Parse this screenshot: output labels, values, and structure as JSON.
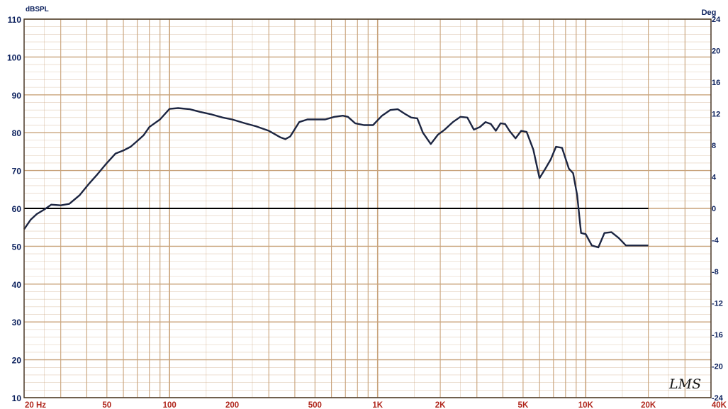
{
  "chart_data": {
    "type": "line",
    "title": "",
    "y_unit_left": "dBSPL",
    "y_unit_right": "Deg",
    "x_scale": "log",
    "xlim": [
      20,
      40000
    ],
    "ylim": [
      10,
      110
    ],
    "ylim_right": [
      -24,
      24
    ],
    "grid": true,
    "x_tick_labels": [
      {
        "value": 20,
        "label": "20  Hz"
      },
      {
        "value": 50,
        "label": "50"
      },
      {
        "value": 100,
        "label": "100"
      },
      {
        "value": 200,
        "label": "200"
      },
      {
        "value": 500,
        "label": "500"
      },
      {
        "value": 1000,
        "label": "1K"
      },
      {
        "value": 2000,
        "label": "2K"
      },
      {
        "value": 5000,
        "label": "5K"
      },
      {
        "value": 10000,
        "label": "10K"
      },
      {
        "value": 20000,
        "label": "20K"
      },
      {
        "value": 40000,
        "label": "40K"
      }
    ],
    "y_ticks_left": [
      10,
      20,
      30,
      40,
      50,
      60,
      70,
      80,
      90,
      100,
      110
    ],
    "y_ticks_right": [
      "-24",
      "-20",
      "-16",
      "-12",
      "-8",
      "-4",
      "0",
      "4",
      "8",
      "12",
      "16",
      "20",
      "24"
    ],
    "reference_line": {
      "y": 60,
      "from_x": 20,
      "to_x": 20000
    },
    "series": [
      {
        "x": [
          20,
          21.5,
          23,
          25,
          27,
          30,
          33,
          37,
          41,
          45,
          50,
          55,
          60,
          65,
          70,
          75,
          80,
          90,
          100,
          110,
          125,
          140,
          160,
          180,
          200,
          230,
          260,
          300,
          340,
          360,
          380,
          420,
          460,
          520,
          560,
          620,
          680,
          720,
          780,
          860,
          950,
          1050,
          1150,
          1250,
          1350,
          1450,
          1550,
          1650,
          1800,
          1950,
          2100,
          2300,
          2500,
          2700,
          2900,
          3100,
          3300,
          3500,
          3700,
          3900,
          4100,
          4300,
          4600,
          4900,
          5200,
          5600,
          6000,
          6400,
          6800,
          7200,
          7700,
          8300,
          8700,
          9100,
          9500,
          10000,
          10700,
          11500,
          12300,
          13300,
          14400,
          15600,
          17000,
          18500,
          20000
        ],
        "y": [
          54.5,
          57,
          58.5,
          59.7,
          61,
          60.8,
          61.2,
          63.5,
          66.5,
          69,
          72,
          74.5,
          75.3,
          76.3,
          77.8,
          79.3,
          81.5,
          83.5,
          86.3,
          86.5,
          86.2,
          85.5,
          84.8,
          84.0,
          83.5,
          82.5,
          81.7,
          80.5,
          78.8,
          78.3,
          79.0,
          82.8,
          83.5,
          83.5,
          83.5,
          84.2,
          84.5,
          84.2,
          82.5,
          82.0,
          82.0,
          84.5,
          86.0,
          86.2,
          85.0,
          84.0,
          83.8,
          80.0,
          77.0,
          79.5,
          80.8,
          82.8,
          84.2,
          84.0,
          80.8,
          81.5,
          82.8,
          82.3,
          80.5,
          82.5,
          82.3,
          80.5,
          78.5,
          80.5,
          80.2,
          75.5,
          68.0,
          70.5,
          73.0,
          76.3,
          76.0,
          70.5,
          69.3,
          63.5,
          53.5,
          53.2,
          50.2,
          49.7,
          53.5,
          53.7,
          52.2,
          50.2,
          50.2,
          50.2,
          50.2
        ]
      }
    ],
    "annotation": "LMS",
    "colors": {
      "curve": "#1c2541",
      "grid": "#c8a27a",
      "reference": "#000000",
      "tick_left": "#0a1f5c",
      "tick_bottom": "#b0261c"
    }
  }
}
